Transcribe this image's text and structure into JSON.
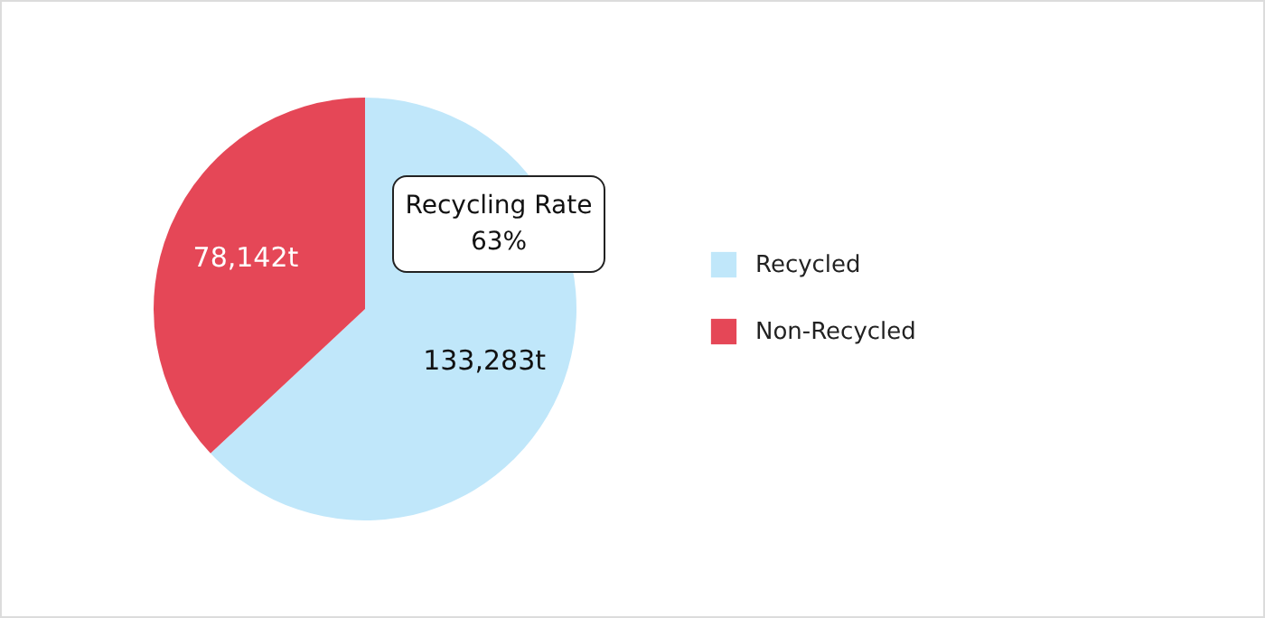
{
  "chart_data": {
    "type": "pie",
    "categories": [
      "Recycled",
      "Non-Recycled"
    ],
    "values": [
      133283,
      78142
    ],
    "value_labels": [
      "133,283t",
      "78,142t"
    ],
    "colors": [
      "#c0e7fa",
      "#e54757"
    ],
    "annotations": [
      "Recycling Rate\n63%"
    ],
    "legend": "right"
  }
}
